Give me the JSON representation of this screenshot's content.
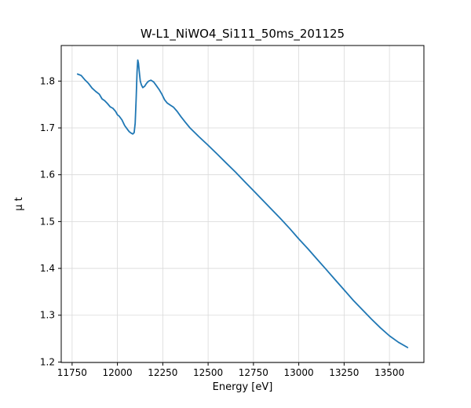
{
  "chart_data": {
    "type": "line",
    "title": "W-L1_NiWO4_Si111_50ms_201125",
    "xlabel": "Energy [eV]",
    "ylabel": "μ t",
    "xlim": [
      11690,
      13690
    ],
    "ylim": [
      1.199,
      1.876
    ],
    "xticks": [
      11750,
      12000,
      12250,
      12500,
      12750,
      13000,
      13250,
      13500
    ],
    "yticks": [
      1.2,
      1.3,
      1.4,
      1.5,
      1.6,
      1.7,
      1.8
    ],
    "grid": true,
    "legend": "none",
    "line_color": "#1f77b4",
    "grid_color": "#d9d9d9",
    "x": [
      11780,
      11800,
      11820,
      11840,
      11860,
      11880,
      11900,
      11915,
      11930,
      11945,
      11960,
      11975,
      11990,
      12000,
      12010,
      12025,
      12040,
      12055,
      12065,
      12075,
      12085,
      12092,
      12098,
      12103,
      12108,
      12112,
      12116,
      12120,
      12126,
      12132,
      12140,
      12150,
      12160,
      12172,
      12185,
      12200,
      12215,
      12230,
      12245,
      12260,
      12275,
      12290,
      12310,
      12330,
      12350,
      12375,
      12400,
      12450,
      12500,
      12550,
      12600,
      12650,
      12700,
      12750,
      12800,
      12850,
      12900,
      12950,
      13000,
      13050,
      13100,
      13150,
      13200,
      13250,
      13300,
      13350,
      13400,
      13450,
      13500,
      13550,
      13600
    ],
    "y": [
      1.815,
      1.812,
      1.803,
      1.795,
      1.785,
      1.778,
      1.772,
      1.762,
      1.758,
      1.752,
      1.745,
      1.742,
      1.735,
      1.728,
      1.725,
      1.717,
      1.705,
      1.697,
      1.692,
      1.689,
      1.687,
      1.69,
      1.71,
      1.76,
      1.82,
      1.845,
      1.838,
      1.822,
      1.8,
      1.792,
      1.786,
      1.789,
      1.795,
      1.8,
      1.802,
      1.798,
      1.79,
      1.782,
      1.772,
      1.76,
      1.753,
      1.749,
      1.744,
      1.735,
      1.724,
      1.712,
      1.7,
      1.681,
      1.663,
      1.644,
      1.625,
      1.606,
      1.586,
      1.566,
      1.546,
      1.526,
      1.506,
      1.485,
      1.463,
      1.442,
      1.42,
      1.398,
      1.376,
      1.354,
      1.332,
      1.312,
      1.292,
      1.273,
      1.256,
      1.242,
      1.231
    ]
  }
}
